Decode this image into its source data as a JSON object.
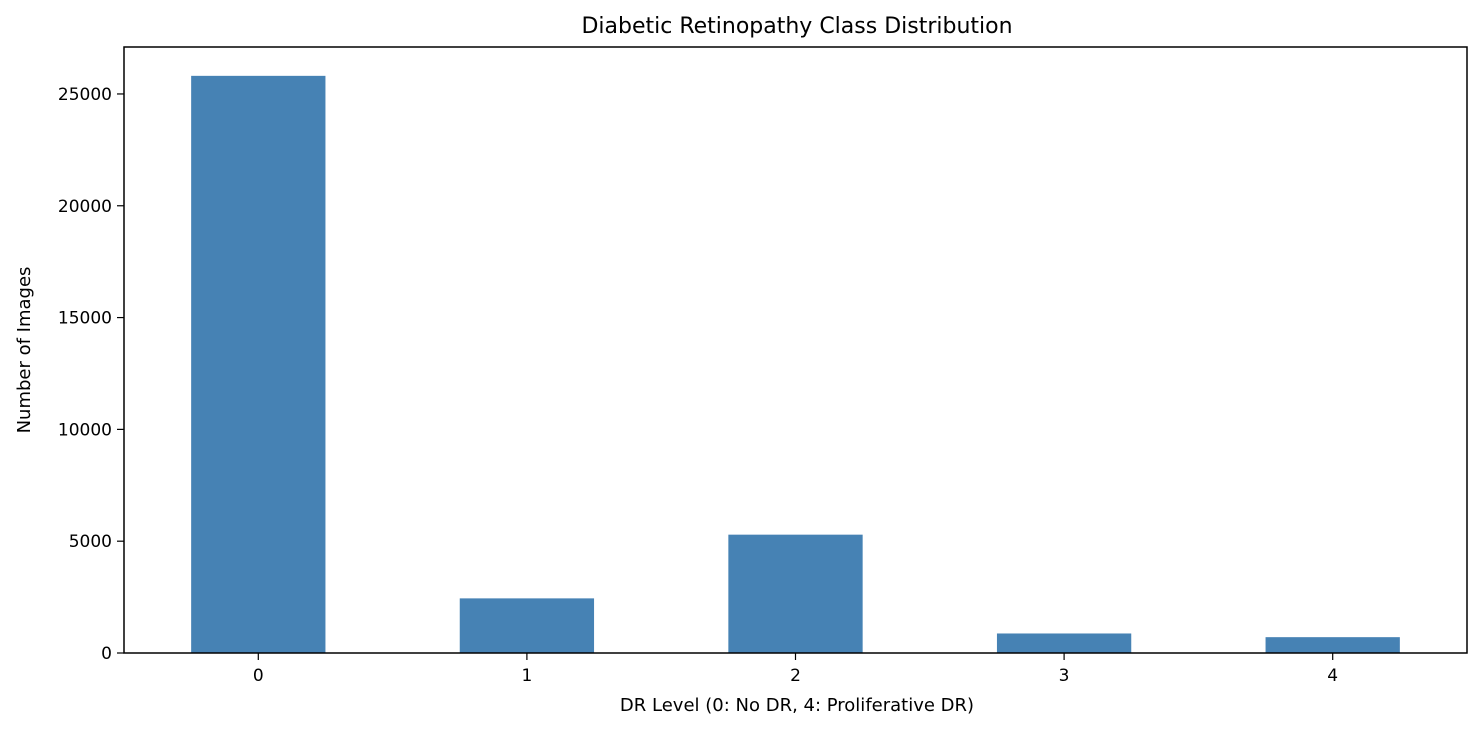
{
  "chart_data": {
    "type": "bar",
    "title": "Diabetic Retinopathy Class Distribution",
    "xlabel": "DR Level (0: No DR, 4: Proliferative DR)",
    "ylabel": "Number of Images",
    "categories": [
      "0",
      "1",
      "2",
      "3",
      "4"
    ],
    "values": [
      25810,
      2443,
      5292,
      873,
      708
    ],
    "ylim": [
      0,
      27100
    ],
    "yticks": [
      0,
      5000,
      10000,
      15000,
      20000,
      25000
    ],
    "ytick_labels": [
      "0",
      "5000",
      "10000",
      "15000",
      "20000",
      "25000"
    ],
    "grid": false,
    "legend": "none",
    "bar_color": "#4682b4"
  }
}
